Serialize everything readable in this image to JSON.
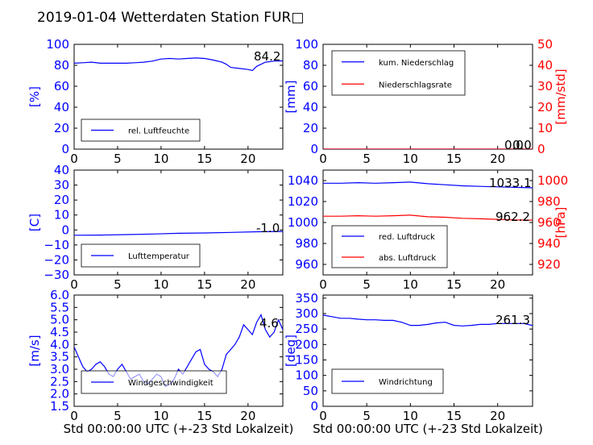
{
  "title": "2019-01-04 Wetterdaten Station FUR□",
  "chart_data": [
    {
      "type": "line",
      "name": "humidity",
      "xlim": [
        0,
        24
      ],
      "xticks": [
        "0",
        "5",
        "10",
        "15",
        "20"
      ],
      "xlabel": "",
      "ylim": [
        0,
        100
      ],
      "yticks": [
        "0",
        "20",
        "40",
        "60",
        "80",
        "100"
      ],
      "ylabel": "[%]",
      "legend": "bottom-left",
      "annotation": "84.2",
      "series": [
        {
          "name": "rel. Luftfeuchte",
          "color": "#0000ff",
          "axis": "left",
          "x": [
            0,
            1,
            2,
            3,
            4,
            5,
            6,
            7,
            8,
            9,
            10,
            11,
            12,
            13,
            14,
            15,
            16,
            17,
            17.5,
            18,
            19,
            20,
            20.5,
            21,
            22,
            23,
            24
          ],
          "y": [
            82,
            82.5,
            83,
            82,
            82,
            82,
            82,
            82.5,
            83,
            84,
            86,
            86.5,
            86,
            86.5,
            87,
            86.5,
            85,
            83,
            81,
            78,
            77,
            76,
            75,
            79,
            83,
            84,
            84.2
          ]
        }
      ]
    },
    {
      "type": "line",
      "name": "precipitation",
      "xlim": [
        0,
        24
      ],
      "xticks": [
        "0",
        "5",
        "10",
        "15",
        "20"
      ],
      "xlabel": "",
      "ylim": [
        0,
        100
      ],
      "yticks": [
        "0",
        "20",
        "40",
        "60",
        "80",
        "100"
      ],
      "ylabel": "[mm]",
      "ylim_right": [
        0,
        50
      ],
      "yticks_right": [
        "0",
        "10",
        "20",
        "30",
        "40",
        "50"
      ],
      "ylabel_right": "[mm/std]",
      "legend": "top-left",
      "annotation": "0.0",
      "annotation_right": "0.0",
      "series": [
        {
          "name": "kum. Niederschlag",
          "color": "#0000ff",
          "axis": "left",
          "x": [
            0,
            24
          ],
          "y": [
            0,
            0
          ]
        },
        {
          "name": "Niederschlagsrate",
          "color": "#ff0000",
          "axis": "right",
          "x": [
            0,
            24
          ],
          "y": [
            0,
            0
          ]
        }
      ]
    },
    {
      "type": "line",
      "name": "temperature",
      "xlim": [
        0,
        24
      ],
      "xticks": [
        "0",
        "5",
        "10",
        "15",
        "20"
      ],
      "xlabel": "",
      "ylim": [
        -30,
        40
      ],
      "yticks": [
        "−30",
        "−20",
        "−10",
        "0",
        "10",
        "20",
        "30",
        "40"
      ],
      "ylabel": "[C]",
      "legend": "bottom-left",
      "annotation": "-1.0",
      "series": [
        {
          "name": "Lufttemperatur",
          "color": "#0000ff",
          "axis": "left",
          "x": [
            0,
            3,
            6,
            9,
            12,
            15,
            18,
            21,
            24
          ],
          "y": [
            -3.5,
            -3.4,
            -3.1,
            -2.7,
            -2.2,
            -2.0,
            -1.6,
            -1.2,
            -1.0
          ]
        }
      ]
    },
    {
      "type": "line",
      "name": "pressure",
      "xlim": [
        0,
        24
      ],
      "xticks": [
        "0",
        "5",
        "10",
        "15",
        "20"
      ],
      "xlabel": "",
      "ylim": [
        950,
        1050
      ],
      "yticks": [
        "960",
        "980",
        "1000",
        "1020",
        "1040"
      ],
      "ylabel": "",
      "ylim_right": [
        910,
        1010
      ],
      "yticks_right": [
        "920",
        "940",
        "960",
        "980",
        "1000"
      ],
      "ylabel_right": "[hPa]",
      "legend": "bottom-left",
      "annotation": "1033.1",
      "annotation_right": "962.2",
      "series": [
        {
          "name": "red. Luftdruck",
          "color": "#0000ff",
          "axis": "left",
          "x": [
            0,
            2,
            4,
            6,
            8,
            10,
            12,
            14,
            16,
            18,
            20,
            22,
            24
          ],
          "y": [
            1037.5,
            1037.5,
            1038,
            1037.5,
            1038,
            1038.5,
            1037,
            1036,
            1035,
            1034.5,
            1034,
            1033.5,
            1033.1
          ]
        },
        {
          "name": "abs. Luftdruck",
          "color": "#ff0000",
          "axis": "right",
          "x": [
            0,
            2,
            4,
            6,
            8,
            10,
            12,
            14,
            16,
            18,
            20,
            22,
            24
          ],
          "y": [
            966,
            966,
            966.5,
            966,
            966.5,
            967,
            965.5,
            965,
            964,
            963.5,
            963,
            962.5,
            962.2
          ]
        }
      ]
    },
    {
      "type": "line",
      "name": "wind-speed",
      "xlim": [
        0,
        24
      ],
      "xticks": [
        "0",
        "5",
        "10",
        "15",
        "20"
      ],
      "xlabel": "Std 00:00:00 UTC (+-23 Std Lokalzeit)",
      "ylim": [
        1.5,
        6.0
      ],
      "yticks": [
        "1.5",
        "2.0",
        "2.5",
        "3.0",
        "3.5",
        "4.0",
        "4.5",
        "5.0",
        "5.5",
        "6.0"
      ],
      "ylabel": "[m/s]",
      "legend": "bottom-left",
      "annotation": "4.6",
      "series": [
        {
          "name": "Windgeschwindigkeit",
          "color": "#0000ff",
          "axis": "left",
          "x": [
            0,
            0.5,
            1,
            1.5,
            2,
            2.5,
            3,
            3.5,
            4,
            4.5,
            5,
            5.5,
            6,
            6.5,
            7,
            7.5,
            8,
            8.5,
            9,
            9.5,
            10,
            10.5,
            11,
            11.5,
            12,
            12.5,
            13,
            13.5,
            14,
            14.5,
            15,
            15.5,
            16,
            16.5,
            17,
            17.5,
            18,
            18.5,
            19,
            19.5,
            20,
            20.5,
            21,
            21.5,
            22,
            22.5,
            23,
            23.5,
            24
          ],
          "y": [
            3.9,
            3.5,
            3.1,
            2.9,
            3.0,
            3.2,
            3.3,
            3.1,
            2.8,
            2.7,
            3.0,
            3.2,
            2.9,
            2.6,
            2.7,
            2.8,
            2.5,
            2.4,
            2.6,
            2.8,
            2.7,
            2.3,
            2.4,
            2.6,
            3.0,
            2.8,
            3.1,
            3.4,
            3.7,
            3.8,
            3.2,
            3.0,
            2.9,
            2.7,
            3.0,
            3.6,
            3.8,
            4.0,
            4.3,
            4.8,
            4.6,
            4.4,
            4.9,
            5.2,
            4.6,
            4.3,
            4.5,
            5.0,
            4.6
          ]
        }
      ]
    },
    {
      "type": "line",
      "name": "wind-direction",
      "xlim": [
        0,
        24
      ],
      "xticks": [
        "0",
        "5",
        "10",
        "15",
        "20"
      ],
      "xlabel": "Std 00:00:00 UTC (+-23 Std Lokalzeit)",
      "ylim": [
        0,
        360
      ],
      "yticks": [
        "0",
        "50",
        "100",
        "150",
        "200",
        "250",
        "300",
        "350"
      ],
      "ylabel": "[deg]",
      "legend": "bottom-left",
      "annotation": "261.3",
      "series": [
        {
          "name": "Windrichtung",
          "color": "#0000ff",
          "axis": "left",
          "x": [
            0,
            1,
            2,
            3,
            4,
            5,
            6,
            7,
            8,
            9,
            10,
            11,
            12,
            13,
            14,
            15,
            16,
            17,
            18,
            19,
            20,
            21,
            22,
            23,
            24
          ],
          "y": [
            295,
            290,
            285,
            285,
            282,
            280,
            280,
            278,
            278,
            272,
            262,
            262,
            265,
            270,
            272,
            262,
            260,
            262,
            265,
            265,
            268,
            268,
            268,
            268,
            261.3
          ]
        }
      ]
    }
  ]
}
